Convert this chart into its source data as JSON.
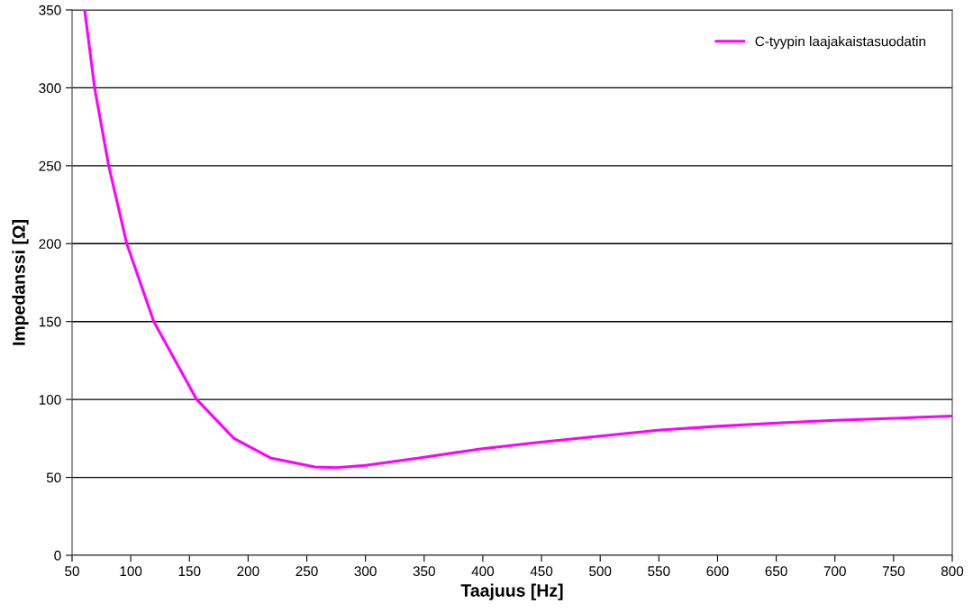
{
  "chart_data": {
    "type": "line",
    "xlabel": "Taajuus [Hz]",
    "ylabel": "Impedanssi [Ω]",
    "series": [
      {
        "name": "C-tyypin laajakaistasuodatin",
        "color": "#ff00ff",
        "x": [
          60.7,
          69.2,
          81.2,
          96.6,
          119.6,
          156.2,
          188,
          219,
          257,
          275,
          300,
          346,
          398,
          449,
          500,
          551,
          600,
          654,
          700,
          756,
          800
        ],
        "values": [
          350,
          300,
          250,
          200,
          150,
          100,
          75,
          62.5,
          56.7,
          56.3,
          57.7,
          62.5,
          68.3,
          72.6,
          76.5,
          80.4,
          82.8,
          85,
          86.6,
          88.1,
          89.4
        ]
      }
    ],
    "xlim": [
      50,
      800
    ],
    "xticks": [
      50,
      100,
      150,
      200,
      250,
      300,
      350,
      400,
      450,
      500,
      550,
      600,
      650,
      700,
      750,
      800
    ],
    "ylim": [
      0,
      350
    ],
    "yticks": [
      0,
      50,
      100,
      150,
      200,
      250,
      300,
      350
    ],
    "grid": "y",
    "legend": "top right",
    "marker": "none",
    "line_style": "solid"
  }
}
